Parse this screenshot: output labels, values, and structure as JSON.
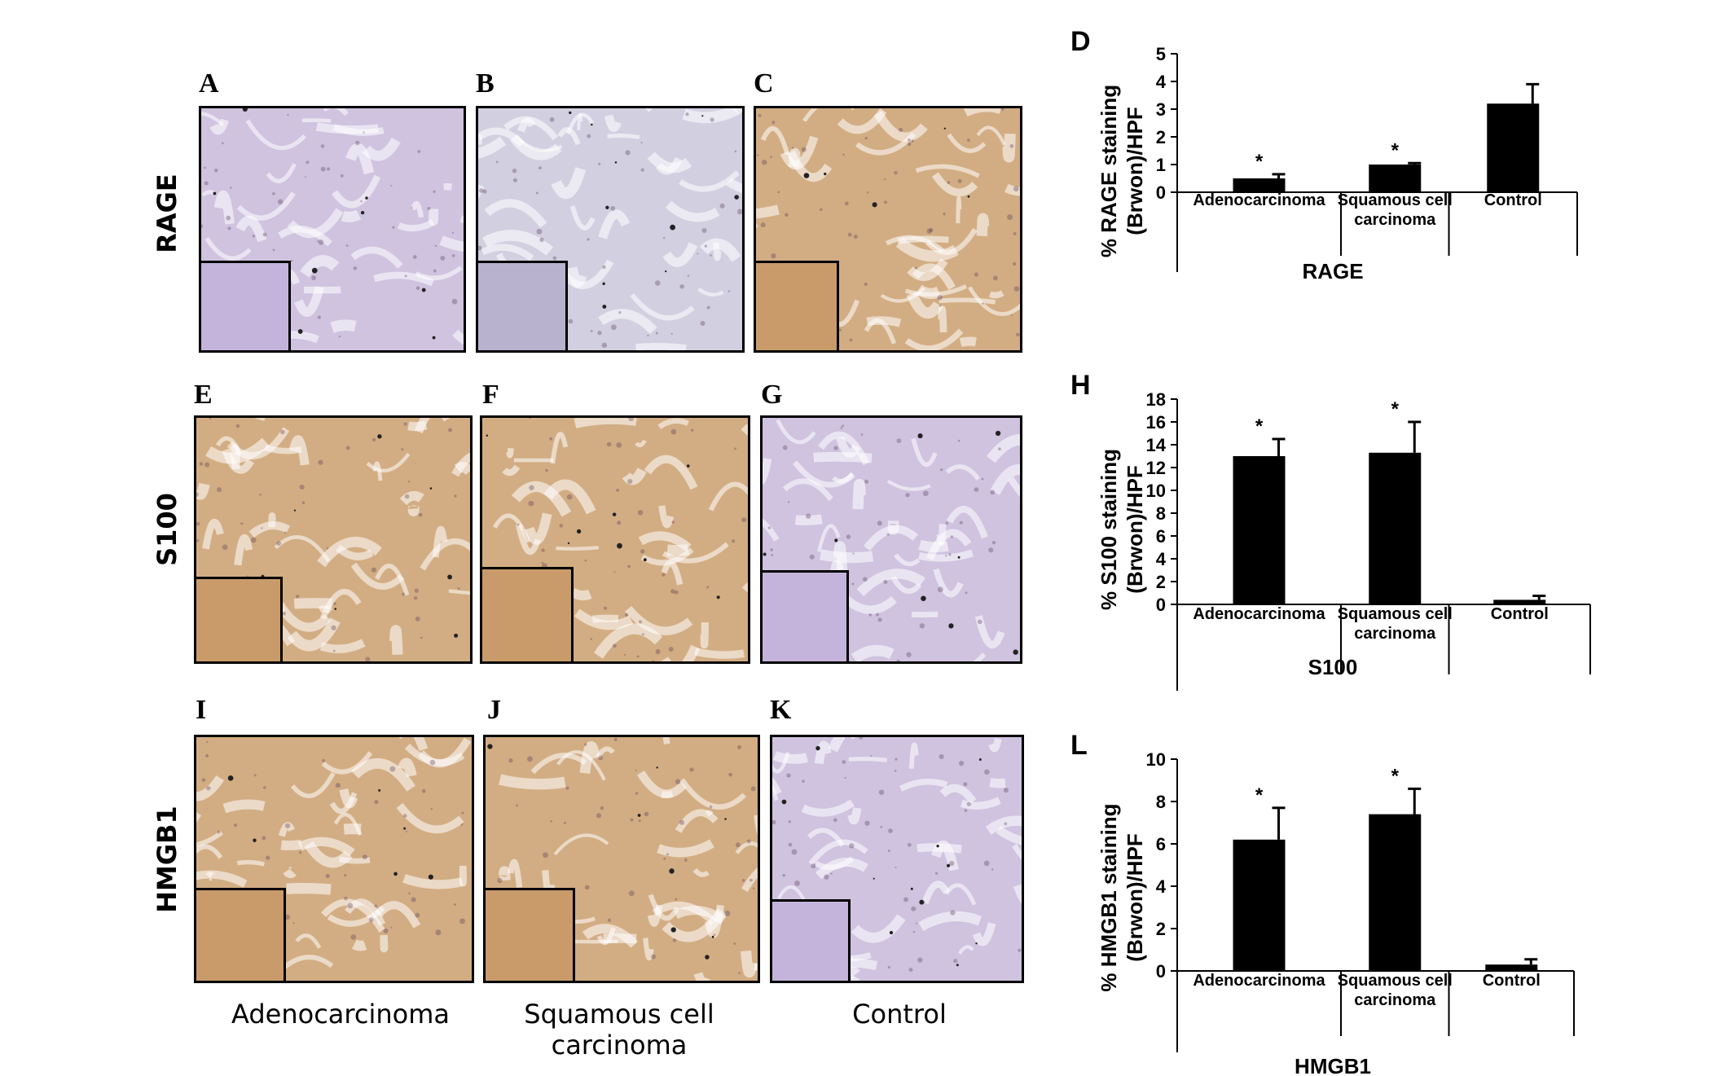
{
  "figure": {
    "row_labels": [
      "RAGE",
      "S100",
      "HMGB1"
    ],
    "column_labels": [
      "Adenocarcinoma",
      "Squamous cell\ncarcinoma",
      "Control"
    ],
    "image_panels": [
      {
        "letter": "A",
        "row": "RAGE",
        "column": "Adenocarcinoma",
        "tone": "lilac"
      },
      {
        "letter": "B",
        "row": "RAGE",
        "column": "Squamous cell carcinoma",
        "tone": "lilac-grey"
      },
      {
        "letter": "C",
        "row": "RAGE",
        "column": "Control",
        "tone": "brown"
      },
      {
        "letter": "E",
        "row": "S100",
        "column": "Adenocarcinoma",
        "tone": "brown"
      },
      {
        "letter": "F",
        "row": "S100",
        "column": "Squamous cell carcinoma",
        "tone": "brown"
      },
      {
        "letter": "G",
        "row": "S100",
        "column": "Control",
        "tone": "lilac"
      },
      {
        "letter": "I",
        "row": "HMGB1",
        "column": "Adenocarcinoma",
        "tone": "brown"
      },
      {
        "letter": "J",
        "row": "HMGB1",
        "column": "Squamous cell carcinoma",
        "tone": "brown"
      },
      {
        "letter": "K",
        "row": "HMGB1",
        "column": "Control",
        "tone": "lilac"
      }
    ],
    "colors": {
      "lilac": "#cfc3df",
      "lilac_inset": "#c4b4db",
      "lilac_grey": "#d2cfe0",
      "lilac_grey_inset": "#b8b2cf",
      "brown": "#d2ad83",
      "brown_inset": "#c99b6b",
      "bar": "#000000"
    }
  },
  "chart_data": [
    {
      "panel": "D",
      "type": "bar",
      "categories": [
        "Adenocarcinoma",
        "Squamous cell\ncarcinoma",
        "Control"
      ],
      "values": [
        0.5,
        1.0,
        3.2
      ],
      "error": [
        0.15,
        0.05,
        0.7
      ],
      "significance": [
        "*",
        "*",
        ""
      ],
      "ylim": [
        0,
        5
      ],
      "yticks": [
        0,
        1,
        2,
        3,
        4,
        5
      ],
      "ylabel": "% RAGE staining\n(Brwon)/HPF",
      "xlabel": "RAGE"
    },
    {
      "panel": "H",
      "type": "bar",
      "categories": [
        "Adenocarcinoma",
        "Squamous cell\ncarcinoma",
        "Control"
      ],
      "values": [
        13.0,
        13.3,
        0.4
      ],
      "error": [
        1.5,
        2.7,
        0.35
      ],
      "significance": [
        "*",
        "*",
        ""
      ],
      "ylim": [
        0,
        18
      ],
      "yticks": [
        0,
        2,
        4,
        6,
        8,
        10,
        12,
        14,
        16,
        18
      ],
      "ylabel": "% S100 staining\n(Brwon)/HPF",
      "xlabel": "S100"
    },
    {
      "panel": "L",
      "type": "bar",
      "categories": [
        "Adenocarcinoma",
        "Squamous cell\ncarcinoma",
        "Control"
      ],
      "values": [
        6.2,
        7.4,
        0.3
      ],
      "error": [
        1.5,
        1.2,
        0.25
      ],
      "significance": [
        "*",
        "*",
        ""
      ],
      "ylim": [
        0,
        10
      ],
      "yticks": [
        0,
        2,
        4,
        6,
        8,
        10
      ],
      "ylabel": "% HMGB1 staining\n(Brwon)/HPF",
      "xlabel": "HMGB1"
    }
  ]
}
